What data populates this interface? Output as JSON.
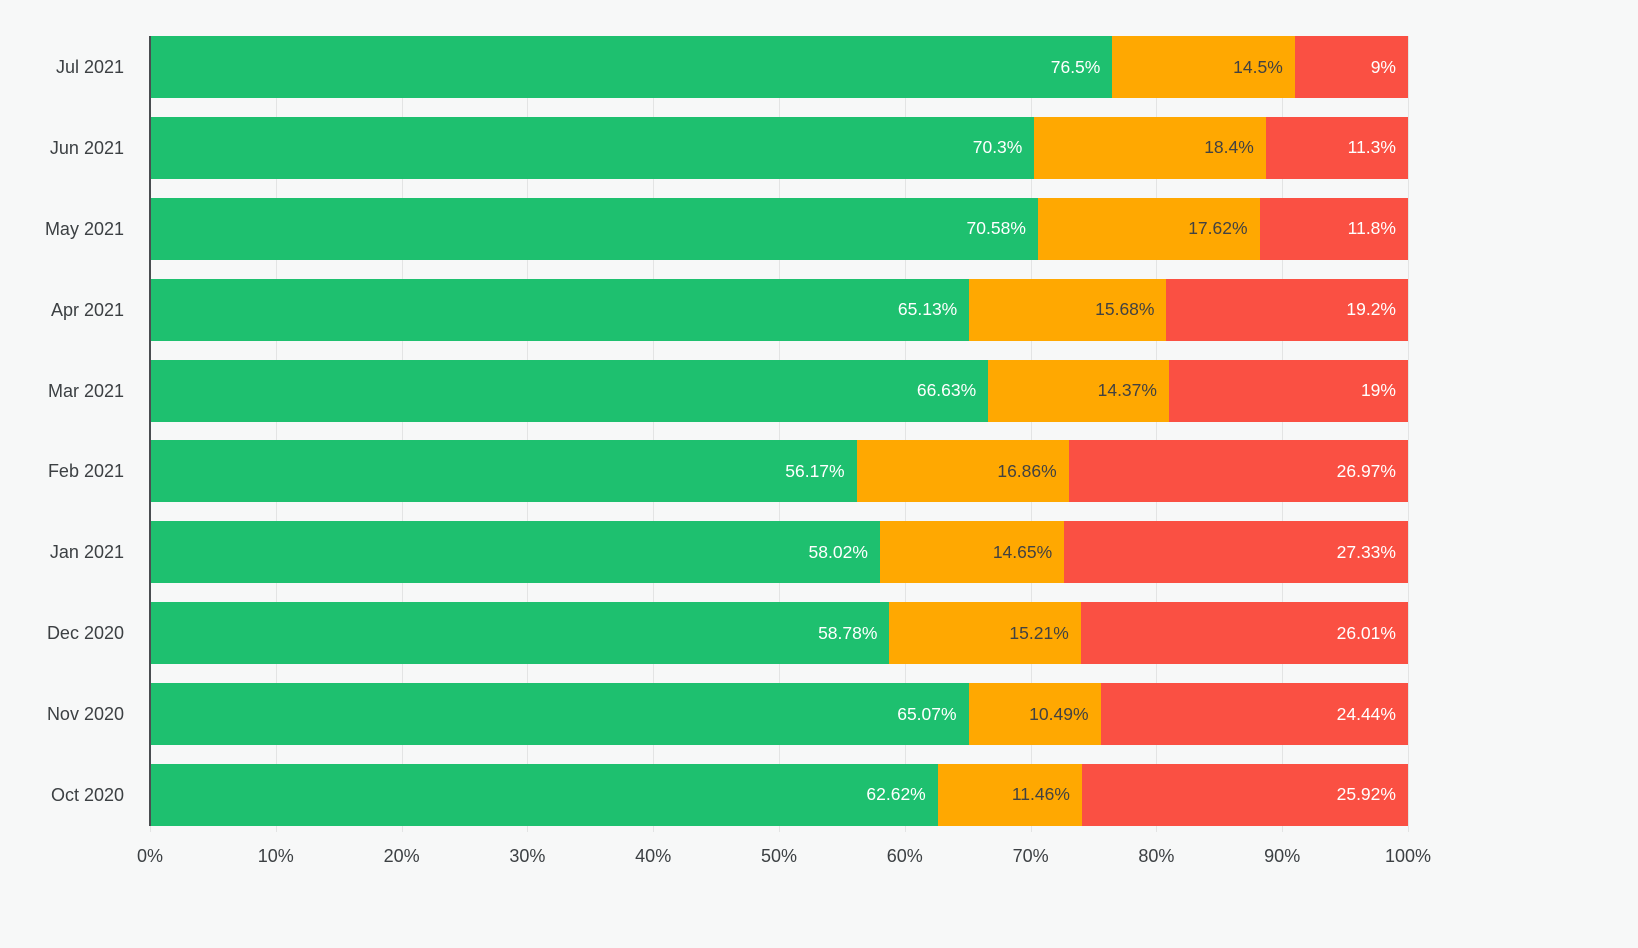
{
  "chart_data": {
    "type": "bar",
    "orientation": "horizontal",
    "stacked": true,
    "title": "",
    "xlabel": "",
    "ylabel": "",
    "xlim": [
      0,
      100
    ],
    "x_ticks": [
      "0%",
      "10%",
      "20%",
      "30%",
      "40%",
      "50%",
      "60%",
      "70%",
      "80%",
      "90%",
      "100%"
    ],
    "grid": "vertical",
    "legend": "none",
    "categories": [
      "Jul 2021",
      "Jun 2021",
      "May 2021",
      "Apr 2021",
      "Mar 2021",
      "Feb 2021",
      "Jan 2021",
      "Dec 2020",
      "Nov 2020",
      "Oct 2020"
    ],
    "series": [
      {
        "name": "green",
        "color": "#1ec06f",
        "label_color": "#ffffff",
        "values": [
          76.5,
          70.3,
          70.58,
          65.13,
          66.63,
          56.17,
          58.02,
          58.78,
          65.07,
          62.62
        ],
        "labels": [
          "76.5%",
          "70.3%",
          "70.58%",
          "65.13%",
          "66.63%",
          "56.17%",
          "58.02%",
          "58.78%",
          "65.07%",
          "62.62%"
        ]
      },
      {
        "name": "orange",
        "color": "#ffa801",
        "label_color": "#424242",
        "values": [
          14.5,
          18.4,
          17.62,
          15.68,
          14.37,
          16.86,
          14.65,
          15.21,
          10.49,
          11.46
        ],
        "labels": [
          "14.5%",
          "18.4%",
          "17.62%",
          "15.68%",
          "14.37%",
          "16.86%",
          "14.65%",
          "15.21%",
          "10.49%",
          "11.46%"
        ]
      },
      {
        "name": "red",
        "color": "#fa5043",
        "label_color": "#ffffff",
        "values": [
          9,
          11.3,
          11.8,
          19.2,
          19,
          26.97,
          27.33,
          26.01,
          24.44,
          25.92
        ],
        "labels": [
          "9%",
          "11.3%",
          "11.8%",
          "19.2%",
          "19%",
          "26.97%",
          "27.33%",
          "26.01%",
          "24.44%",
          "25.92%"
        ]
      }
    ],
    "colors": {
      "background": "#f7f8f8",
      "gridline": "#e3e4e4",
      "axis_line": "#4a4d50",
      "tick_text": "#3c4043"
    }
  }
}
